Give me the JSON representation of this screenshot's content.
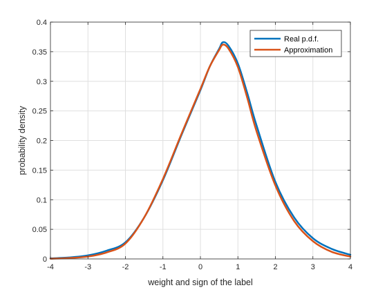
{
  "chart_data": {
    "type": "line",
    "xlabel": "weight and sign of the label",
    "ylabel": "probability density",
    "xlim": [
      -4,
      4
    ],
    "ylim": [
      0,
      0.4
    ],
    "x_ticks": [
      -4,
      -3,
      -2,
      -1,
      0,
      1,
      2,
      3,
      4
    ],
    "y_ticks": [
      0,
      0.05,
      0.1,
      0.15,
      0.2,
      0.25,
      0.3,
      0.35,
      0.4
    ],
    "x_tick_labels": [
      "-4",
      "-3",
      "-2",
      "-1",
      "0",
      "1",
      "2",
      "3",
      "4"
    ],
    "y_tick_labels": [
      "0",
      "0.05",
      "0.1",
      "0.15",
      "0.2",
      "0.25",
      "0.3",
      "0.35",
      "0.4"
    ],
    "grid": true,
    "legend_position": "top-right",
    "x": [
      -4,
      -3.5,
      -3,
      -2.5,
      -2,
      -1.5,
      -1,
      -0.5,
      0,
      0.25,
      0.5,
      0.6,
      0.75,
      1,
      1.25,
      1.5,
      2,
      2.5,
      3,
      3.5,
      4
    ],
    "series": [
      {
        "name": "Real p.d.f.",
        "color": "#0072BD",
        "values": [
          0.001,
          0.0025,
          0.006,
          0.014,
          0.028,
          0.07,
          0.133,
          0.21,
          0.285,
          0.325,
          0.355,
          0.366,
          0.36,
          0.33,
          0.28,
          0.225,
          0.13,
          0.07,
          0.035,
          0.017,
          0.007
        ]
      },
      {
        "name": "Approximation",
        "color": "#D95319",
        "values": [
          0.0005,
          0.0015,
          0.004,
          0.011,
          0.026,
          0.07,
          0.135,
          0.212,
          0.287,
          0.325,
          0.353,
          0.362,
          0.355,
          0.324,
          0.272,
          0.215,
          0.124,
          0.064,
          0.03,
          0.012,
          0.004
        ]
      }
    ]
  }
}
